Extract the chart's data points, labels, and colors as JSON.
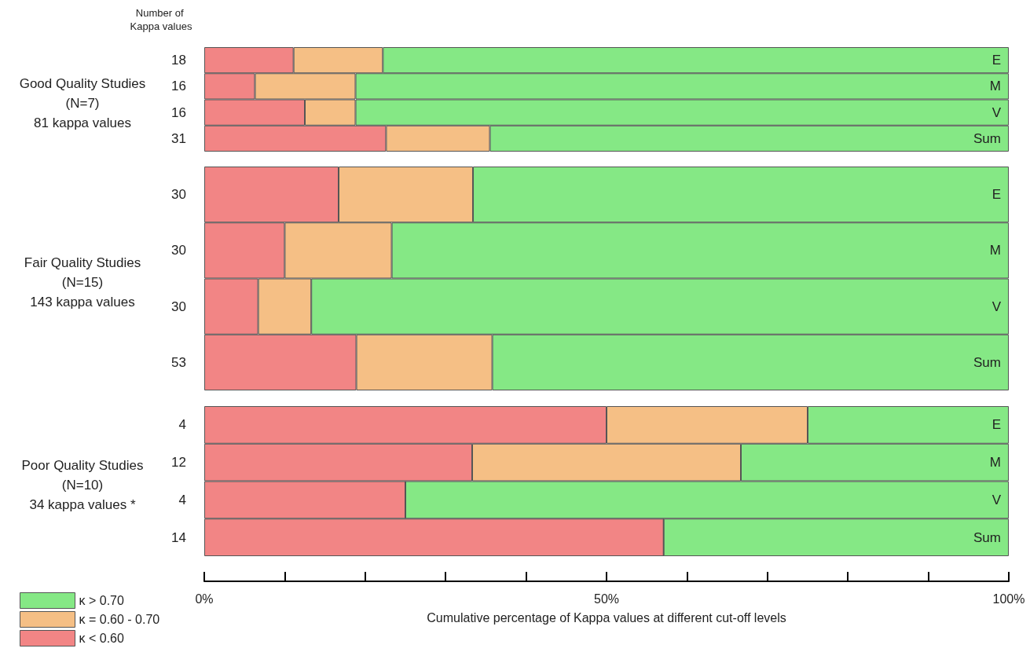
{
  "chart_data": [
    {
      "type": "bar",
      "orientation": "horizontal",
      "stacked": true,
      "title": "Good Quality Studies\n(N=7)\n81 kappa values",
      "ylabel": "Number of Kappa values",
      "categories": [
        "E",
        "M",
        "V",
        "Sum"
      ],
      "xlim": [
        0,
        100
      ],
      "tick_labels": "y",
      "series": [
        {
          "color": "#f28585",
          "values": [
            11.1,
            6.3,
            12.5,
            22.6
          ]
        },
        {
          "color": "#f5bf85",
          "values": [
            11.1,
            12.5,
            6.3,
            12.9
          ]
        },
        {
          "color": "#85e885",
          "values": [
            77.8,
            81.2,
            81.2,
            64.5
          ]
        }
      ],
      "annotations": [
        "18",
        "16",
        "16",
        "31"
      ]
    },
    {
      "type": "bar",
      "orientation": "horizontal",
      "stacked": true,
      "title": "Fair Quality Studies\n(N=15)\n143 kappa values",
      "categories": [
        "E",
        "M",
        "V",
        "Sum"
      ],
      "xlim": [
        0,
        100
      ],
      "tick_labels": "y",
      "series": [
        {
          "color": "#f28585",
          "values": [
            16.7,
            10.0,
            6.7,
            18.9
          ]
        },
        {
          "color": "#f5bf85",
          "values": [
            16.7,
            13.3,
            6.6,
            16.9
          ]
        },
        {
          "color": "#85e885",
          "values": [
            66.6,
            76.7,
            86.7,
            64.2
          ]
        }
      ],
      "annotations": [
        "30",
        "30",
        "30",
        "53"
      ]
    },
    {
      "type": "bar",
      "orientation": "horizontal",
      "stacked": true,
      "title": "Poor Quality Studies\n(N=10)\n34 kappa values *",
      "xlabel": "Cumulative percentage of Kappa values at different cut-off levels",
      "categories": [
        "E",
        "M",
        "V",
        "Sum"
      ],
      "xlim": [
        0,
        100
      ],
      "xticks": [
        {
          "value": 0,
          "label": "0%"
        },
        {
          "value": 10,
          "label": null
        },
        {
          "value": 20,
          "label": null
        },
        {
          "value": 30,
          "label": null
        },
        {
          "value": 40,
          "label": null
        },
        {
          "value": 50,
          "label": "50%"
        },
        {
          "value": 60,
          "label": null
        },
        {
          "value": 70,
          "label": null
        },
        {
          "value": 80,
          "label": null
        },
        {
          "value": 90,
          "label": null
        },
        {
          "value": 100,
          "label": "100%"
        }
      ],
      "legend": "bottom left",
      "series": [
        {
          "name": "κ < 0.60",
          "color": "#f28585",
          "values": [
            50.0,
            33.3,
            25.0,
            57.1
          ]
        },
        {
          "name": "κ = 0.60 - 0.70",
          "color": "#f5bf85",
          "values": [
            25.0,
            33.4,
            0,
            0
          ]
        },
        {
          "name": "κ > 0.70",
          "color": "#85e885",
          "values": [
            25.0,
            33.3,
            75.0,
            42.9
          ]
        }
      ],
      "annotations": [
        "4",
        "12",
        "4",
        "14"
      ]
    }
  ]
}
